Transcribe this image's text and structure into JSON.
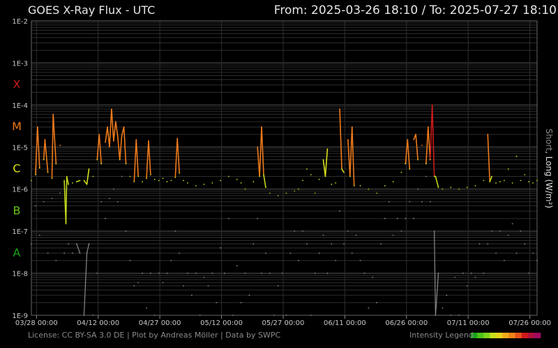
{
  "header": {
    "title": "GOES X-Ray Flux - UTC",
    "range": "From: 2025-03-26 18:10  /  To: 2025-07-27 18:10"
  },
  "footer": {
    "credits": "License: CC BY-SA 3.0 DE | Plot by Andreas Möller | Data by SWPC",
    "legend_label": "Intensity Legend",
    "legend_colors": [
      "#1aa51a",
      "#4cc41a",
      "#7ed51a",
      "#c8e01a",
      "#e6d21a",
      "#f0aa1a",
      "#f08219",
      "#e8501a",
      "#d01a1a",
      "#b0103c",
      "#a00a60"
    ]
  },
  "chart_data": {
    "type": "line",
    "title": "GOES X-Ray Flux - UTC",
    "ylabel_short": "Short",
    "ylabel_sep": ", ",
    "ylabel_long": "Long (W/m²)",
    "y_scale": "log",
    "ylim": [
      1e-09,
      0.01
    ],
    "y_ticks": [
      "1E-2",
      "1E-3",
      "1E-4",
      "1E-5",
      "1E-6",
      "1E-7",
      "1E-8",
      "1E-9"
    ],
    "flare_classes": [
      {
        "label": "X",
        "color": "#cc1a1a"
      },
      {
        "label": "M",
        "color": "#f07a1a"
      },
      {
        "label": "C",
        "color": "#d8e01a"
      },
      {
        "label": "B",
        "color": "#66c41a"
      },
      {
        "label": "A",
        "color": "#1aa51a"
      }
    ],
    "x_ticks": [
      "03/28 00:00",
      "04/12 00:00",
      "04/27 00:00",
      "05/12 00:00",
      "05/27 00:00",
      "06/11 00:00",
      "06/26 00:00",
      "07/11 00:00",
      "07/26 00:00"
    ],
    "x_tick_days": [
      1.24,
      16.24,
      31.24,
      46.24,
      61.24,
      76.24,
      91.24,
      106.24,
      121.24
    ],
    "x_span_days": 123,
    "grid": true,
    "series": [
      {
        "name": "Long",
        "color": "gradient by class",
        "points": [
          [
            0,
            1.6e-06
          ],
          [
            1,
            2.2e-06
          ],
          [
            1.5,
            3e-05
          ],
          [
            2,
            3.2e-06
          ],
          [
            3,
            5e-06
          ],
          [
            3.3,
            1.5e-05
          ],
          [
            4,
            2.5e-06
          ],
          [
            5,
            1.8e-06
          ],
          [
            5.3,
            6e-05
          ],
          [
            6,
            4e-06
          ],
          [
            7,
            1.1e-05
          ],
          [
            8,
            1.6e-06
          ],
          [
            8.4,
            1.5e-07
          ],
          [
            8.6,
            2e-06
          ],
          [
            9,
            1.3e-06
          ],
          [
            10,
            1.4e-06
          ],
          [
            11,
            1.5e-06
          ],
          [
            11.8,
            1.6e-06
          ],
          [
            12.8,
            1.6e-06
          ],
          [
            13.5,
            1.3e-06
          ],
          [
            14,
            3e-06
          ],
          [
            15,
            2e-06
          ],
          [
            16,
            5e-06
          ],
          [
            16.5,
            2e-05
          ],
          [
            17,
            4e-06
          ],
          [
            18,
            1.3e-05
          ],
          [
            18.5,
            3e-05
          ],
          [
            19,
            1e-05
          ],
          [
            19.5,
            8e-05
          ],
          [
            20,
            1.4e-05
          ],
          [
            20.5,
            4e-05
          ],
          [
            21,
            1.8e-05
          ],
          [
            21.5,
            5e-06
          ],
          [
            22,
            1.9e-05
          ],
          [
            22.5,
            3e-05
          ],
          [
            23,
            4e-06
          ],
          [
            24,
            2e-06
          ],
          [
            25,
            1.5e-06
          ],
          [
            25.5,
            1.5e-05
          ],
          [
            26,
            2e-06
          ],
          [
            27,
            1.5e-06
          ],
          [
            28,
            1.8e-06
          ],
          [
            28.5,
            1.4e-05
          ],
          [
            29,
            2.2e-06
          ],
          [
            30,
            1.7e-06
          ],
          [
            31,
            1.6e-06
          ],
          [
            32,
            1.8e-06
          ],
          [
            33,
            1.5e-06
          ],
          [
            34,
            1.6e-06
          ],
          [
            35,
            1.9e-06
          ],
          [
            35.5,
            1.6e-05
          ],
          [
            36,
            2.4e-06
          ],
          [
            37,
            1.6e-06
          ],
          [
            38,
            1.4e-06
          ],
          [
            40,
            1.2e-06
          ],
          [
            42,
            1.3e-06
          ],
          [
            44,
            1.4e-06
          ],
          [
            46,
            1.6e-06
          ],
          [
            48,
            2e-06
          ],
          [
            50,
            1.7e-06
          ],
          [
            51,
            1.4e-06
          ],
          [
            52,
            1e-06
          ],
          [
            54,
            1.5e-06
          ],
          [
            55,
            1e-05
          ],
          [
            55.5,
            2e-06
          ],
          [
            56,
            3e-05
          ],
          [
            56.5,
            2.2e-06
          ],
          [
            57,
            1.1e-06
          ],
          [
            58,
            8e-07
          ],
          [
            60,
            7e-07
          ],
          [
            62,
            8e-07
          ],
          [
            64,
            9e-07
          ],
          [
            65,
            1e-06
          ],
          [
            66,
            1.6e-06
          ],
          [
            67,
            3e-06
          ],
          [
            68,
            2.2e-06
          ],
          [
            69,
            8e-07
          ],
          [
            70,
            1.7e-06
          ],
          [
            71,
            5e-06
          ],
          [
            71.5,
            2e-06
          ],
          [
            72,
            9e-06
          ],
          [
            73,
            1.3e-06
          ],
          [
            74,
            1.4e-06
          ],
          [
            75,
            8e-05
          ],
          [
            75.5,
            3e-06
          ],
          [
            76,
            2.5e-06
          ],
          [
            77,
            1.5e-05
          ],
          [
            77.5,
            2e-06
          ],
          [
            78,
            3e-05
          ],
          [
            78.5,
            1.2e-06
          ],
          [
            80,
            1.2e-06
          ],
          [
            82,
            1e-06
          ],
          [
            84,
            8e-07
          ],
          [
            86,
            1.2e-06
          ],
          [
            88,
            1.5e-06
          ],
          [
            90,
            2.5e-06
          ],
          [
            91,
            4e-06
          ],
          [
            91.5,
            1.5e-05
          ],
          [
            92,
            3e-06
          ],
          [
            93,
            1.5e-05
          ],
          [
            93.5,
            2e-05
          ],
          [
            94,
            5e-06
          ],
          [
            95,
            1.1e-05
          ],
          [
            96,
            4e-06
          ],
          [
            96.5,
            3e-05
          ],
          [
            97,
            5e-06
          ],
          [
            97.5,
            0.0001
          ],
          [
            98,
            2e-06
          ],
          [
            98.3,
            2e-06
          ],
          [
            99,
            1.1e-06
          ],
          [
            100,
            1e-06
          ],
          [
            102,
            1.1e-06
          ],
          [
            104,
            1e-06
          ],
          [
            106,
            1.1e-06
          ],
          [
            108,
            1.2e-06
          ],
          [
            110,
            1.6e-06
          ],
          [
            111,
            2e-05
          ],
          [
            111.5,
            1.5e-06
          ],
          [
            112,
            2e-06
          ],
          [
            113,
            1.4e-06
          ],
          [
            114,
            1.5e-06
          ],
          [
            115,
            1.6e-06
          ],
          [
            116,
            3e-06
          ],
          [
            117,
            1.4e-06
          ],
          [
            118,
            6e-06
          ],
          [
            119,
            1.6e-06
          ],
          [
            120,
            2.2e-06
          ],
          [
            121,
            1.5e-06
          ],
          [
            122,
            1.4e-06
          ],
          [
            123,
            1.6e-06
          ]
        ]
      },
      {
        "name": "Short",
        "color": "#8a8a8a",
        "points": [
          [
            0,
            5e-08
          ],
          [
            1,
            4e-07
          ],
          [
            2,
            8e-08
          ],
          [
            3,
            5e-07
          ],
          [
            4,
            3e-08
          ],
          [
            5,
            6e-07
          ],
          [
            6,
            2e-08
          ],
          [
            7,
            8e-07
          ],
          [
            8,
            3e-08
          ],
          [
            9,
            5e-08
          ],
          [
            10,
            3e-08
          ],
          [
            11,
            5e-08
          ],
          [
            11.8,
            3e-08
          ],
          [
            12.8,
            1e-09
          ],
          [
            13.5,
            3e-08
          ],
          [
            14,
            5e-08
          ],
          [
            15,
            1e-09
          ],
          [
            16,
            1e-08
          ],
          [
            17,
            5e-07
          ],
          [
            18,
            2e-07
          ],
          [
            19,
            6e-07
          ],
          [
            20,
            1e-06
          ],
          [
            21,
            5e-07
          ],
          [
            22,
            2e-06
          ],
          [
            23,
            1e-07
          ],
          [
            24,
            2e-08
          ],
          [
            25,
            5e-09
          ],
          [
            26,
            6e-09
          ],
          [
            27,
            1e-08
          ],
          [
            28,
            1.5e-09
          ],
          [
            29,
            1e-08
          ],
          [
            30,
            1e-09
          ],
          [
            31,
            1e-08
          ],
          [
            32,
            6e-09
          ],
          [
            33,
            1e-08
          ],
          [
            34,
            2e-08
          ],
          [
            35,
            1e-07
          ],
          [
            36,
            3e-08
          ],
          [
            37,
            5e-09
          ],
          [
            38,
            1e-08
          ],
          [
            39,
            3e-09
          ],
          [
            40,
            1e-08
          ],
          [
            41,
            1e-09
          ],
          [
            42,
            8e-09
          ],
          [
            43,
            5e-09
          ],
          [
            44,
            1e-08
          ],
          [
            45,
            2e-09
          ],
          [
            46,
            4e-08
          ],
          [
            47,
            1e-08
          ],
          [
            48,
            2e-07
          ],
          [
            49,
            1e-09
          ],
          [
            50,
            1.5e-08
          ],
          [
            51,
            2e-09
          ],
          [
            52,
            1e-08
          ],
          [
            53,
            3e-09
          ],
          [
            54,
            5e-08
          ],
          [
            55,
            2e-07
          ],
          [
            56,
            1e-08
          ],
          [
            57,
            3e-08
          ],
          [
            58,
            1e-08
          ],
          [
            59,
            1e-09
          ],
          [
            60,
            5e-09
          ],
          [
            61,
            1e-08
          ],
          [
            62,
            1e-09
          ],
          [
            63,
            3e-08
          ],
          [
            64,
            1e-07
          ],
          [
            65,
            2e-08
          ],
          [
            66,
            1e-07
          ],
          [
            67,
            5e-08
          ],
          [
            68,
            1e-09
          ],
          [
            69,
            1e-08
          ],
          [
            70,
            3e-08
          ],
          [
            71,
            8e-08
          ],
          [
            72,
            1e-08
          ],
          [
            73,
            5e-08
          ],
          [
            74,
            2e-08
          ],
          [
            75,
            3e-07
          ],
          [
            76,
            5e-08
          ],
          [
            77,
            1e-07
          ],
          [
            78,
            3e-08
          ],
          [
            79,
            8e-08
          ],
          [
            80,
            2e-08
          ],
          [
            81,
            1e-08
          ],
          [
            82,
            1.5e-09
          ],
          [
            83,
            8e-09
          ],
          [
            84,
            2e-09
          ],
          [
            85,
            5e-08
          ],
          [
            86,
            2e-07
          ],
          [
            87,
            5e-07
          ],
          [
            88,
            8e-08
          ],
          [
            89,
            2e-07
          ],
          [
            90,
            1e-07
          ],
          [
            91,
            2e-07
          ],
          [
            92,
            5e-07
          ],
          [
            93,
            2e-07
          ],
          [
            94,
            1e-06
          ],
          [
            95,
            5e-07
          ],
          [
            96,
            2e-06
          ],
          [
            97,
            5e-07
          ],
          [
            98,
            1e-07
          ],
          [
            98.3,
            1e-09
          ],
          [
            99,
            1e-08
          ],
          [
            100,
            1.5e-09
          ],
          [
            101,
            3e-09
          ],
          [
            102,
            1e-09
          ],
          [
            103,
            8e-09
          ],
          [
            104,
            1e-09
          ],
          [
            105,
            1e-08
          ],
          [
            106,
            5e-09
          ],
          [
            107,
            1e-08
          ],
          [
            108,
            8e-09
          ],
          [
            109,
            5e-08
          ],
          [
            110,
            1e-08
          ],
          [
            111,
            5e-08
          ],
          [
            112,
            1e-07
          ],
          [
            113,
            3e-08
          ],
          [
            114,
            1e-07
          ],
          [
            115,
            2e-08
          ],
          [
            116,
            8e-08
          ],
          [
            117,
            1.5e-07
          ],
          [
            118,
            3e-08
          ],
          [
            119,
            1e-07
          ],
          [
            120,
            5e-08
          ],
          [
            121,
            1e-08
          ],
          [
            122,
            3e-08
          ],
          [
            123,
            2e-08
          ]
        ]
      }
    ]
  }
}
